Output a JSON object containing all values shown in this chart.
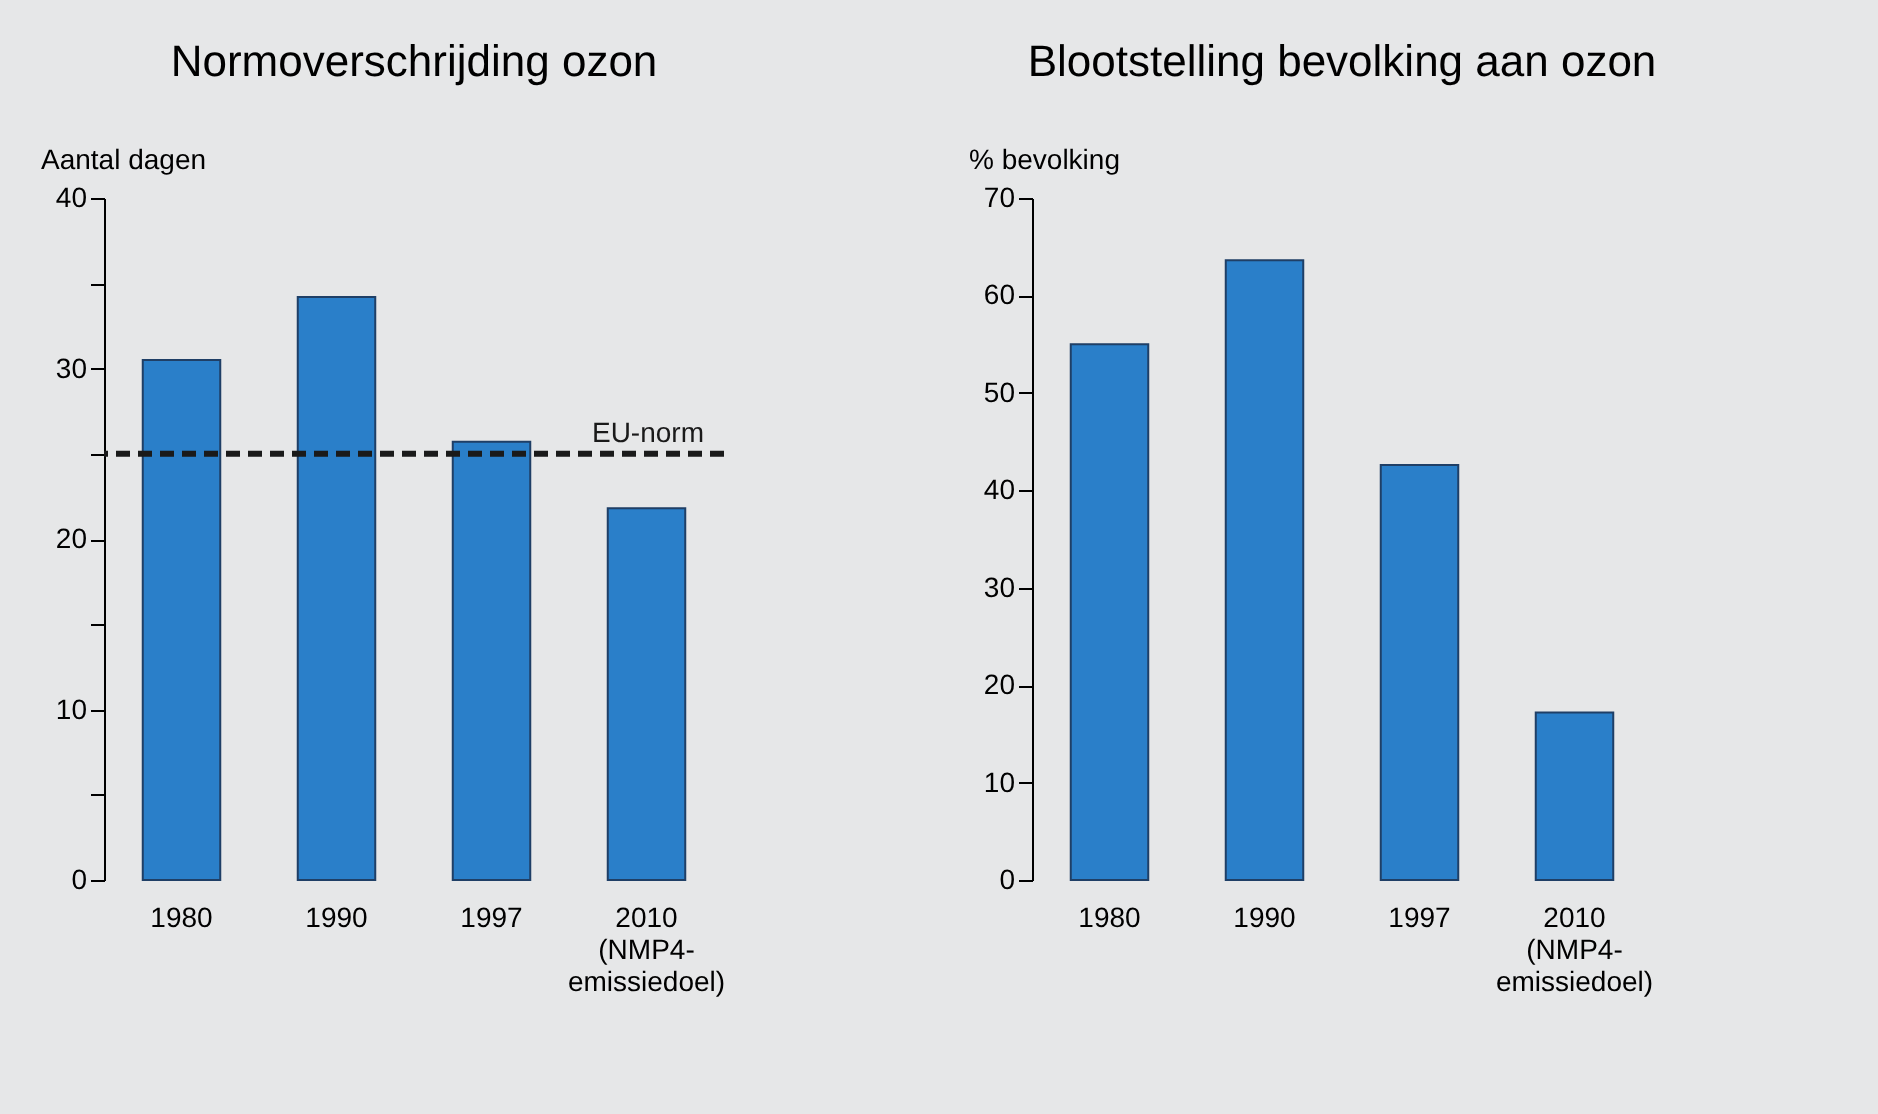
{
  "chart_data": [
    {
      "type": "bar",
      "title": "Normoverschrijding ozon",
      "ylabel": "Aantal dagen",
      "categories": [
        "1980",
        "1990",
        "1997",
        "2010\n(NMP4-\nemissiedoel)"
      ],
      "values": [
        30.5,
        34.2,
        25.7,
        21.8
      ],
      "color": "#2a7fc9",
      "ylim": [
        0,
        40
      ],
      "yticks": [
        0,
        {
          "value": 5,
          "label": null
        },
        10,
        {
          "value": 15,
          "label": null
        },
        20,
        {
          "value": 25,
          "label": null
        },
        30,
        {
          "value": 35,
          "label": null
        },
        40
      ],
      "ref_lines": [
        {
          "axis": "y",
          "value": 25,
          "label": "EU-norm",
          "color": "#1a1a1a",
          "line_style": "dashed"
        }
      ]
    },
    {
      "type": "bar",
      "title": "Blootstelling bevolking aan ozon",
      "ylabel": "% bevolking",
      "categories": [
        "1980",
        "1990",
        "1997",
        "2010\n(NMP4-\nemissiedoel)"
      ],
      "values": [
        55,
        63.6,
        42.6,
        17.2
      ],
      "color": "#2a7fc9",
      "ylim": [
        0,
        70
      ],
      "yticks": [
        0,
        10,
        20,
        30,
        40,
        50,
        60,
        70
      ]
    }
  ]
}
